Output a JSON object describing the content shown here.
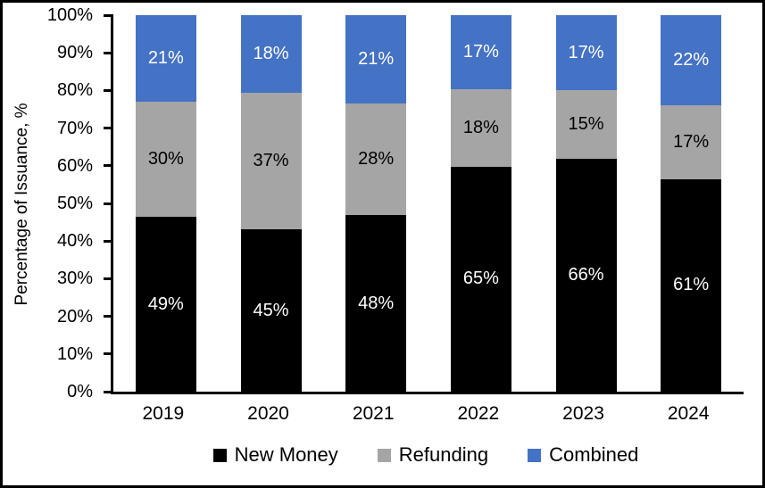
{
  "chart_data": {
    "type": "bar",
    "stacked": true,
    "categories": [
      "2019",
      "2020",
      "2021",
      "2022",
      "2023",
      "2024"
    ],
    "series": [
      {
        "name": "New Money",
        "color": "#000000",
        "label_color": "#ffffff",
        "values": [
          49,
          45,
          48,
          65,
          66,
          61
        ]
      },
      {
        "name": "Refunding",
        "color": "#A5A5A5",
        "label_color": "#000000",
        "values": [
          30,
          37,
          28,
          18,
          15,
          17
        ]
      },
      {
        "name": "Combined",
        "color": "#4472C4",
        "label_color": "#ffffff",
        "values": [
          21,
          18,
          21,
          17,
          17,
          22
        ]
      }
    ],
    "value_suffix": "%",
    "ylabel": "Percentage of Issuance, %",
    "yticks": [
      "0%",
      "10%",
      "20%",
      "30%",
      "40%",
      "50%",
      "60%",
      "70%",
      "80%",
      "90%",
      "100%"
    ],
    "ylim": [
      0,
      100
    ],
    "grid": false,
    "legend_position": "bottom"
  }
}
